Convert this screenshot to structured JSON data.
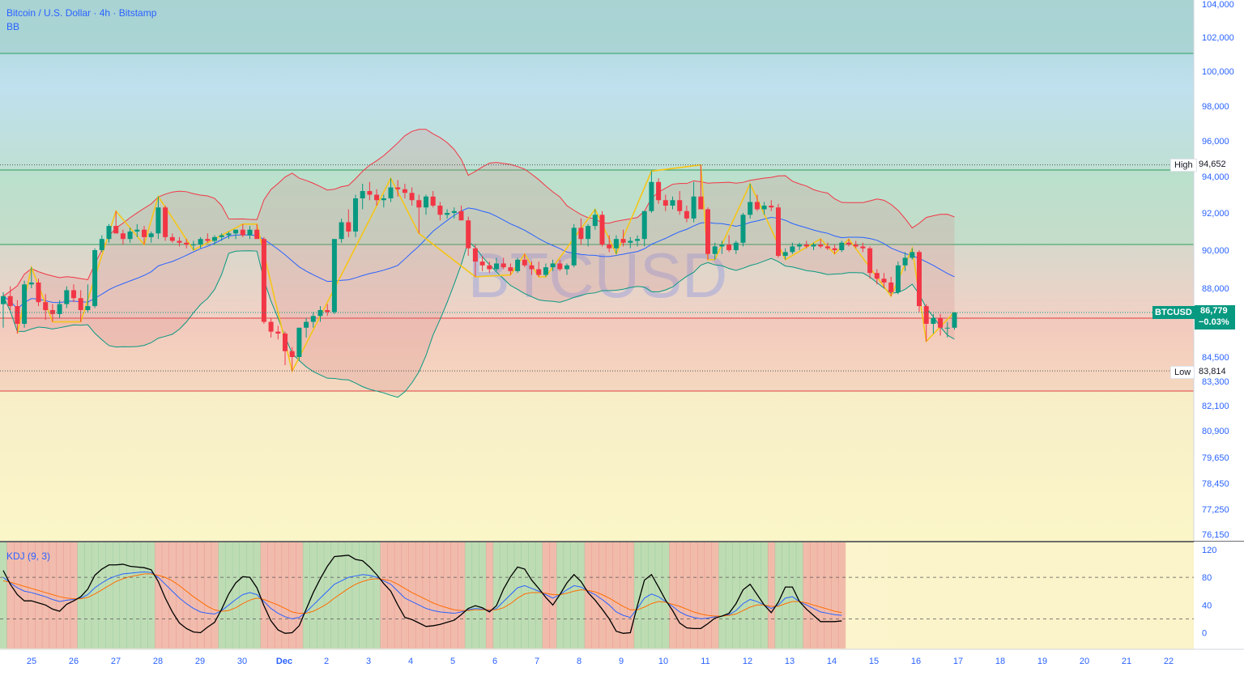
{
  "header": {
    "title": "Bitcoin / U.S. Dollar · 4h · Bitstamp",
    "indicator": "BB"
  },
  "watermark": "BTCUSD",
  "price_axis": {
    "ticks": [
      "104,000",
      "102,000",
      "100,000",
      "98,000",
      "96,000",
      "94,000",
      "92,000",
      "90,000",
      "88,000",
      "84,500",
      "83,300",
      "82,100",
      "80,900",
      "79,650",
      "78,450",
      "77,250",
      "76,150"
    ],
    "high_label": "High",
    "high_value": "94,652",
    "low_label": "Low",
    "low_value": "83,814",
    "current_symbol": "BTCUSD",
    "current_price": "86,779",
    "current_change": "−0.03%"
  },
  "time_axis": {
    "labels": [
      "25",
      "26",
      "27",
      "28",
      "29",
      "30",
      "Dec",
      "2",
      "3",
      "4",
      "5",
      "6",
      "7",
      "8",
      "9",
      "10",
      "11",
      "12",
      "13",
      "14",
      "15",
      "16",
      "17",
      "18",
      "19",
      "20",
      "21",
      "22"
    ]
  },
  "kdj": {
    "label": "KDJ (9, 3)",
    "ticks": [
      "120",
      "80",
      "40",
      "0"
    ]
  },
  "colors": {
    "up": "#089981",
    "down": "#f23645",
    "bb_upper": "#f23645",
    "bb_lower": "#089981",
    "bb_basis": "#2962ff",
    "zigzag": "#f5c518",
    "k": "#2962ff",
    "d": "#ff6d00",
    "j": "#000000"
  },
  "chart_data": [
    {
      "type": "candlestick",
      "title": "Bitcoin / U.S. Dollar · 4h · Bitstamp",
      "ohlc_approx": [
        [
          87200,
          87800,
          86000,
          87600
        ],
        [
          87600,
          88100,
          86900,
          87100
        ],
        [
          87100,
          87400,
          85700,
          86200
        ],
        [
          86200,
          88400,
          86000,
          88200
        ],
        [
          88200,
          89100,
          88000,
          88300
        ],
        [
          88300,
          88500,
          87100,
          87300
        ],
        [
          87300,
          87700,
          86400,
          86900
        ],
        [
          86900,
          87200,
          86300,
          86700
        ],
        [
          86700,
          87400,
          86500,
          87200
        ],
        [
          87200,
          88100,
          87000,
          87900
        ],
        [
          87900,
          88200,
          87300,
          87500
        ],
        [
          87500,
          87900,
          86300,
          86900
        ],
        [
          86900,
          88200,
          86800,
          87100
        ],
        [
          87100,
          90100,
          87000,
          90000
        ],
        [
          90000,
          90800,
          89900,
          90600
        ],
        [
          90600,
          91400,
          90400,
          91300
        ],
        [
          91300,
          92100,
          90900,
          90900
        ],
        [
          90900,
          91100,
          90300,
          90600
        ],
        [
          90600,
          91200,
          90400,
          91000
        ],
        [
          91000,
          91400,
          90700,
          91100
        ],
        [
          91100,
          91300,
          90300,
          90700
        ],
        [
          90700,
          91000,
          90400,
          90900
        ],
        [
          90900,
          92900,
          90600,
          92300
        ],
        [
          92300,
          92400,
          90500,
          90700
        ],
        [
          90700,
          90900,
          90400,
          90500
        ],
        [
          90500,
          90700,
          90200,
          90400
        ],
        [
          90400,
          90600,
          90100,
          90300
        ],
        [
          90300,
          90500,
          90000,
          90300
        ],
        [
          90300,
          90700,
          90100,
          90600
        ],
        [
          90600,
          90900,
          90400,
          90500
        ],
        [
          90500,
          90800,
          90300,
          90700
        ],
        [
          90700,
          90900,
          90500,
          90800
        ],
        [
          90800,
          91000,
          90600,
          90900
        ],
        [
          90900,
          91100,
          90600,
          91100
        ],
        [
          91100,
          91400,
          90700,
          90800
        ],
        [
          90800,
          91300,
          90600,
          91100
        ],
        [
          91100,
          91400,
          90900,
          90600
        ],
        [
          90600,
          90700,
          86200,
          86300
        ],
        [
          86300,
          86500,
          85500,
          85800
        ],
        [
          85800,
          86100,
          85400,
          85700
        ],
        [
          85700,
          85800,
          84100,
          84800
        ],
        [
          84800,
          85000,
          83800,
          84500
        ],
        [
          84500,
          86000,
          84300,
          86000
        ],
        [
          86000,
          86500,
          85500,
          86300
        ],
        [
          86300,
          86800,
          86000,
          86600
        ],
        [
          86600,
          87100,
          86300,
          86900
        ],
        [
          86900,
          87200,
          86600,
          86800
        ],
        [
          86800,
          90600,
          86700,
          90600
        ],
        [
          90600,
          91700,
          90400,
          91500
        ],
        [
          91500,
          92200,
          90700,
          91000
        ],
        [
          91000,
          93000,
          90700,
          92800
        ],
        [
          92800,
          93600,
          92200,
          93200
        ],
        [
          93200,
          93700,
          92700,
          93000
        ],
        [
          93000,
          93300,
          92400,
          92700
        ],
        [
          92700,
          93000,
          92300,
          92800
        ],
        [
          92800,
          93900,
          92600,
          93400
        ],
        [
          93400,
          93800,
          92900,
          93300
        ],
        [
          93300,
          93600,
          92800,
          93100
        ],
        [
          93100,
          93400,
          92400,
          92700
        ],
        [
          92700,
          93000,
          90900,
          92300
        ],
        [
          92300,
          93000,
          91900,
          92900
        ],
        [
          92900,
          93200,
          92300,
          92400
        ],
        [
          92400,
          92600,
          91600,
          91900
        ],
        [
          91900,
          92200,
          91700,
          92000
        ],
        [
          92000,
          92300,
          91700,
          92100
        ],
        [
          92100,
          92400,
          91600,
          91600
        ],
        [
          91600,
          91800,
          89700,
          90100
        ],
        [
          90100,
          90300,
          88600,
          89400
        ],
        [
          89400,
          89700,
          88900,
          89200
        ],
        [
          89200,
          89400,
          88800,
          89000
        ],
        [
          89000,
          89600,
          88900,
          89300
        ],
        [
          89300,
          89600,
          89000,
          89100
        ],
        [
          89100,
          89300,
          88700,
          88900
        ],
        [
          88900,
          89600,
          88800,
          89500
        ],
        [
          89500,
          89800,
          89100,
          89200
        ],
        [
          89200,
          89400,
          88700,
          89000
        ],
        [
          89000,
          89400,
          88600,
          88700
        ],
        [
          88700,
          89300,
          88600,
          89100
        ],
        [
          89100,
          89500,
          88900,
          89300
        ],
        [
          89300,
          89500,
          88900,
          89000
        ],
        [
          89000,
          89300,
          88700,
          89200
        ],
        [
          89200,
          91400,
          89100,
          91200
        ],
        [
          91200,
          91700,
          90300,
          90600
        ],
        [
          90600,
          91400,
          90200,
          91300
        ],
        [
          91300,
          92200,
          91100,
          91900
        ],
        [
          91900,
          92100,
          90200,
          90300
        ],
        [
          90300,
          90800,
          89900,
          90100
        ],
        [
          90100,
          90800,
          89800,
          90600
        ],
        [
          90600,
          91100,
          90200,
          90400
        ],
        [
          90400,
          90700,
          90100,
          90500
        ],
        [
          90500,
          90800,
          90200,
          90600
        ],
        [
          90600,
          92100,
          90200,
          92100
        ],
        [
          92100,
          94300,
          92000,
          93700
        ],
        [
          93700,
          93900,
          92500,
          92700
        ],
        [
          92700,
          93000,
          92100,
          92400
        ],
        [
          92400,
          92900,
          92200,
          92700
        ],
        [
          92700,
          93200,
          91900,
          92100
        ],
        [
          92100,
          92400,
          91500,
          91700
        ],
        [
          91700,
          93700,
          91500,
          92900
        ],
        [
          92900,
          94652,
          92600,
          92200
        ],
        [
          92200,
          92300,
          89500,
          89800
        ],
        [
          89800,
          90400,
          89500,
          90200
        ],
        [
          90200,
          90500,
          89800,
          90300
        ],
        [
          90300,
          90800,
          89900,
          90000
        ],
        [
          90000,
          90500,
          89800,
          90400
        ],
        [
          90400,
          92000,
          90200,
          91900
        ],
        [
          91900,
          93600,
          91700,
          92600
        ],
        [
          92600,
          93000,
          92100,
          92200
        ],
        [
          92200,
          92600,
          91900,
          92400
        ],
        [
          92400,
          92700,
          92100,
          92300
        ],
        [
          92300,
          92500,
          89600,
          89700
        ],
        [
          89700,
          90100,
          89500,
          89900
        ],
        [
          89900,
          90400,
          89800,
          90200
        ],
        [
          90200,
          90400,
          90000,
          90300
        ],
        [
          90300,
          90500,
          90100,
          90200
        ],
        [
          90200,
          90400,
          90000,
          90300
        ],
        [
          90300,
          90600,
          90100,
          90200
        ],
        [
          90200,
          90400,
          90000,
          90100
        ],
        [
          90100,
          90300,
          89800,
          90000
        ],
        [
          90000,
          90500,
          89900,
          90400
        ],
        [
          90400,
          90600,
          90200,
          90300
        ],
        [
          90300,
          90500,
          90100,
          90200
        ],
        [
          90200,
          90400,
          89900,
          90100
        ],
        [
          90100,
          90200,
          88500,
          88800
        ],
        [
          88800,
          89000,
          88200,
          88500
        ],
        [
          88500,
          88800,
          88000,
          88300
        ],
        [
          88300,
          88600,
          87600,
          87800
        ],
        [
          87800,
          89400,
          87700,
          89200
        ],
        [
          89200,
          89900,
          88900,
          89600
        ],
        [
          89600,
          90100,
          89500,
          89900
        ],
        [
          89900,
          90000,
          86800,
          87100
        ],
        [
          87100,
          87200,
          85300,
          86200
        ],
        [
          86200,
          86700,
          85700,
          86500
        ],
        [
          86500,
          86700,
          85600,
          86000
        ],
        [
          86000,
          86300,
          85500,
          86000
        ],
        [
          86000,
          86800,
          85900,
          86779
        ]
      ]
    },
    {
      "type": "line",
      "title": "KDJ (9, 3)",
      "ylim": [
        -10,
        120
      ],
      "series": [
        {
          "name": "K",
          "values": [
            80,
            72,
            65,
            60,
            58,
            55,
            52,
            48,
            45,
            47,
            48,
            50,
            55,
            65,
            72,
            78,
            82,
            85,
            86,
            87,
            88,
            87,
            80,
            70,
            60,
            50,
            42,
            35,
            30,
            28,
            27,
            32,
            40,
            48,
            55,
            58,
            55,
            45,
            35,
            28,
            23,
            20,
            22,
            30,
            40,
            50,
            60,
            70,
            75,
            80,
            82,
            84,
            83,
            80,
            75,
            70,
            60,
            50,
            45,
            40,
            35,
            32,
            30,
            29,
            28,
            30,
            33,
            35,
            34,
            32,
            35,
            45,
            55,
            65,
            68,
            64,
            60,
            55,
            50,
            55,
            62,
            68,
            66,
            60,
            55,
            48,
            40,
            30,
            25,
            22,
            35,
            50,
            56,
            52,
            45,
            38,
            30,
            25,
            22,
            20,
            21,
            23,
            24,
            26,
            32,
            42,
            48,
            45,
            40,
            35,
            40,
            50,
            52,
            45,
            40,
            35,
            30,
            28,
            26,
            25
          ]
        },
        {
          "name": "D",
          "values": [
            75,
            73,
            70,
            67,
            64,
            61,
            58,
            55,
            52,
            50,
            49,
            49,
            51,
            56,
            62,
            68,
            74,
            78,
            81,
            83,
            85,
            85,
            83,
            80,
            75,
            68,
            60,
            52,
            45,
            38,
            33,
            31,
            32,
            36,
            42,
            47,
            50,
            48,
            44,
            40,
            35,
            30,
            28,
            28,
            31,
            36,
            42,
            50,
            57,
            64,
            70,
            74,
            77,
            78,
            77,
            75,
            70,
            64,
            58,
            53,
            48,
            43,
            39,
            36,
            33,
            32,
            32,
            33,
            33,
            33,
            33,
            36,
            42,
            50,
            56,
            58,
            58,
            57,
            55,
            55,
            57,
            60,
            62,
            61,
            59,
            55,
            50,
            44,
            38,
            33,
            33,
            37,
            42,
            45,
            44,
            41,
            38,
            34,
            30,
            27,
            25,
            24,
            24,
            25,
            27,
            32,
            37,
            40,
            40,
            38,
            38,
            42,
            45,
            45,
            43,
            40,
            37,
            34,
            31,
            29
          ]
        },
        {
          "name": "J",
          "values": [
            90,
            70,
            55,
            46,
            46,
            43,
            40,
            34,
            31,
            41,
            46,
            52,
            63,
            83,
            92,
            98,
            98,
            99,
            96,
            95,
            94,
            91,
            74,
            50,
            30,
            14,
            6,
            1,
            0,
            8,
            15,
            34,
            56,
            72,
            81,
            80,
            65,
            39,
            17,
            4,
            -1,
            0,
            10,
            34,
            58,
            78,
            96,
            110,
            111,
            112,
            106,
            104,
            95,
            84,
            71,
            60,
            40,
            22,
            19,
            14,
            9,
            10,
            12,
            15,
            18,
            26,
            35,
            39,
            36,
            30,
            39,
            63,
            81,
            95,
            92,
            76,
            64,
            51,
            40,
            55,
            72,
            84,
            74,
            58,
            47,
            34,
            20,
            2,
            -1,
            0,
            39,
            76,
            84,
            66,
            47,
            32,
            14,
            7,
            6,
            6,
            13,
            21,
            24,
            28,
            42,
            62,
            70,
            55,
            40,
            29,
            44,
            66,
            66,
            45,
            34,
            25,
            16,
            16,
            16,
            17
          ]
        }
      ]
    }
  ]
}
